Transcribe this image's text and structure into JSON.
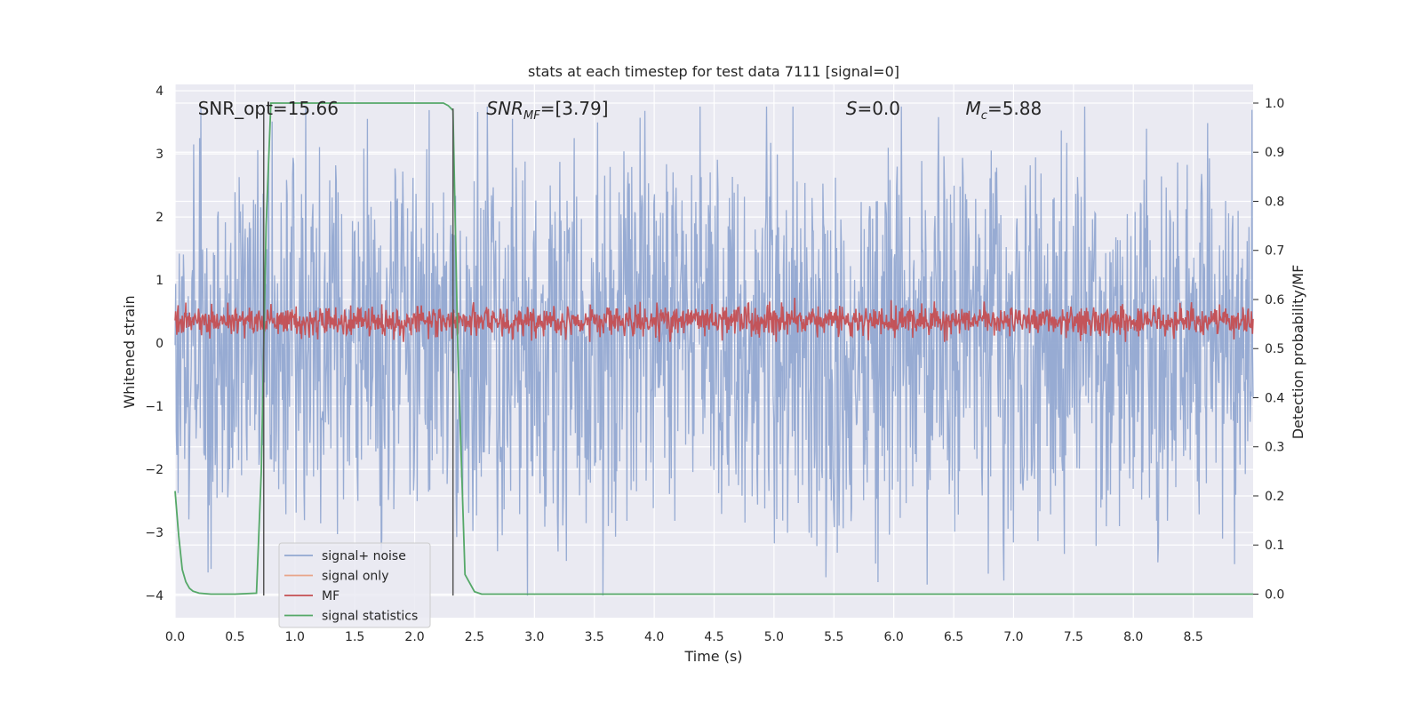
{
  "chart_data": {
    "type": "line",
    "title": "stats at each timestep for test data 7111 [signal=0]",
    "xlabel": "Time (s)",
    "ylabel": "Whitened strain",
    "y2label": "Detection probability/MF",
    "xlim": [
      0,
      9.0
    ],
    "ylim": [
      -4.35,
      4.1
    ],
    "y2lim": [
      -0.048,
      1.038
    ],
    "xticks": [
      "0.0",
      "0.5",
      "1.0",
      "1.5",
      "2.0",
      "2.5",
      "3.0",
      "3.5",
      "4.0",
      "4.5",
      "5.0",
      "5.5",
      "6.0",
      "6.5",
      "7.0",
      "7.5",
      "8.0",
      "8.5"
    ],
    "yticks": [
      "4",
      "3",
      "2",
      "1",
      "0",
      "−1",
      "−2",
      "−3",
      "−4"
    ],
    "y2ticks": [
      "1.0",
      "0.9",
      "0.8",
      "0.7",
      "0.6",
      "0.5",
      "0.4",
      "0.3",
      "0.2",
      "0.1",
      "0.0"
    ],
    "annotations": [
      {
        "text": "SNR_opt=15.66",
        "x": 0.19,
        "y": 3.72
      },
      {
        "text": "SNR",
        "sub": "MF",
        "rest": "=[3.79]",
        "x": 2.6,
        "y": 3.72
      },
      {
        "text": "S",
        "rest": "=0.0",
        "x": 5.6,
        "y": 3.72
      },
      {
        "text": "M",
        "sub": "c",
        "rest": "=5.88",
        "x": 6.6,
        "y": 3.72
      }
    ],
    "vlines": [
      {
        "x": 0.74,
        "y_from": -4.0,
        "y_to": 3.72
      },
      {
        "x": 2.32,
        "y_from": -4.0,
        "y_to": 3.72
      }
    ],
    "series": [
      {
        "name": "signal+ noise",
        "color": "#92a8d1",
        "axis": "left",
        "kind": "noise",
        "n": 1800,
        "amplitude": 1.3,
        "peak_max": 3.75,
        "peak_min": -4.0
      },
      {
        "name": "signal only",
        "color": "#e8a58a",
        "axis": "left",
        "values": []
      },
      {
        "name": "MF",
        "color": "#c44e52",
        "axis": "left",
        "kind": "noise",
        "n": 1800,
        "center": 0.35,
        "amplitude": 0.22
      },
      {
        "name": "signal statistics",
        "color": "#55a868",
        "axis": "right",
        "x": [
          0.0,
          0.03,
          0.06,
          0.09,
          0.12,
          0.15,
          0.2,
          0.3,
          0.5,
          0.68,
          0.72,
          0.76,
          0.8,
          0.85,
          1.0,
          1.5,
          2.0,
          2.24,
          2.28,
          2.32,
          2.36,
          2.42,
          2.5,
          2.56,
          2.7,
          3.5,
          5.0,
          7.0,
          9.0
        ],
        "y": [
          0.21,
          0.12,
          0.05,
          0.025,
          0.012,
          0.006,
          0.002,
          0.0,
          0.0,
          0.002,
          0.25,
          0.75,
          1.0,
          1.0,
          1.0,
          1.0,
          1.0,
          1.0,
          0.995,
          0.985,
          0.5,
          0.04,
          0.005,
          0.0,
          0.0,
          0.0,
          0.0,
          0.0,
          0.0
        ]
      }
    ],
    "legend_position": "bottom-left"
  }
}
